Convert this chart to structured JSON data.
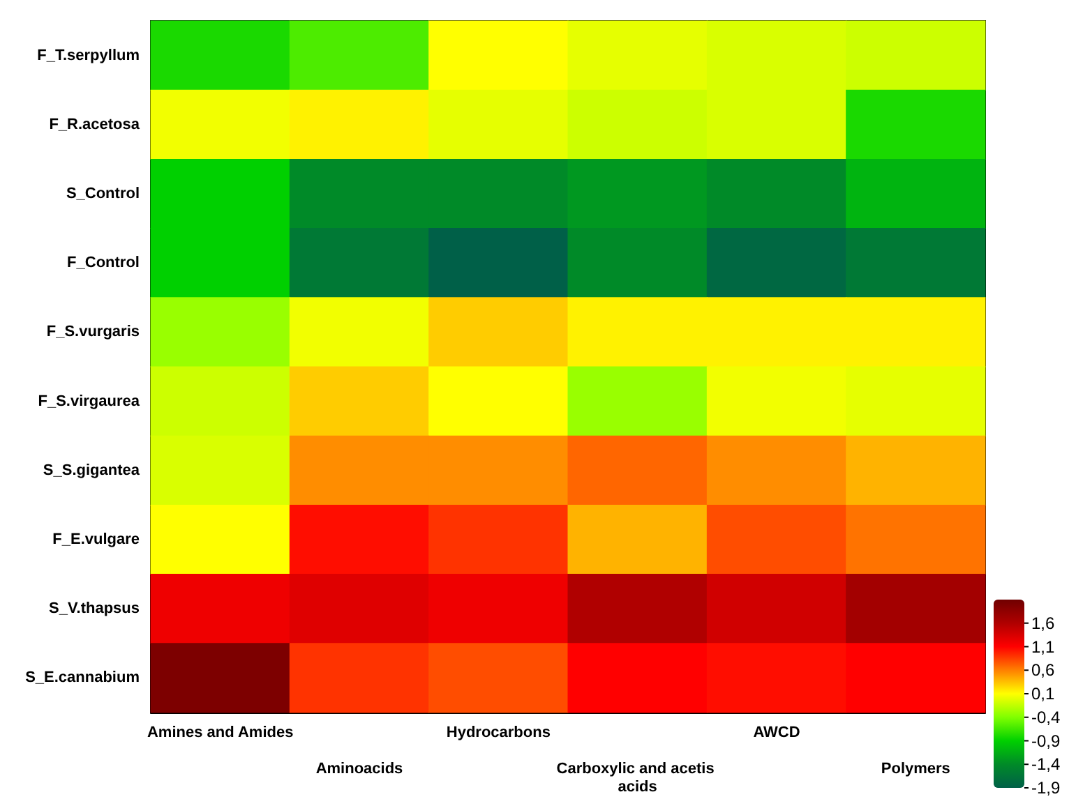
{
  "chart_data": {
    "type": "heatmap",
    "categories": [
      "Amines and Amides",
      "Aminoacids",
      "Hydrocarbons",
      "Carboxylic and acetis acids",
      "AWCD",
      "Polymers"
    ],
    "y_categories": [
      "F_T.serpyllum",
      "F_R.acetosa",
      "S_Control",
      "F_Control",
      "F_S.vurgaris",
      "F_S.virgaurea",
      "S_S.gigantea",
      "F_E.vulgare",
      "S_V.thapsus",
      "S_E.cannabium"
    ],
    "cells": [
      [
        -0.8,
        -0.6,
        0.1,
        0.0,
        -0.05,
        -0.1
      ],
      [
        0.05,
        0.15,
        0.0,
        -0.1,
        -0.05,
        -0.8
      ],
      [
        -0.9,
        -1.4,
        -1.4,
        -1.3,
        -1.4,
        -1.1
      ],
      [
        -0.9,
        -1.6,
        -1.9,
        -1.4,
        -1.8,
        -1.6
      ],
      [
        -0.3,
        0.05,
        0.3,
        0.15,
        0.15,
        0.15
      ],
      [
        -0.1,
        0.3,
        0.1,
        -0.3,
        0.05,
        0.0
      ],
      [
        -0.05,
        0.55,
        0.55,
        0.7,
        0.55,
        0.4
      ],
      [
        0.1,
        1.05,
        0.9,
        0.4,
        0.8,
        0.65
      ],
      [
        1.2,
        1.3,
        1.2,
        1.6,
        1.4,
        1.7
      ],
      [
        2.0,
        0.9,
        0.8,
        1.1,
        1.05,
        1.1
      ]
    ],
    "clim": [
      -1.9,
      2.1
    ],
    "cticks": [
      {
        "value": 1.6,
        "label": "1,6"
      },
      {
        "value": 1.1,
        "label": "1,1"
      },
      {
        "value": 0.6,
        "label": "0,6"
      },
      {
        "value": 0.1,
        "label": "0,1"
      },
      {
        "value": -0.4,
        "label": "-0,4"
      },
      {
        "value": -0.9,
        "label": "-0,9"
      },
      {
        "value": -1.4,
        "label": "-1,4"
      },
      {
        "value": -1.9,
        "label": "-1,9"
      }
    ]
  }
}
